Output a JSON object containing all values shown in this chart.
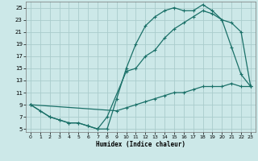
{
  "xlabel": "Humidex (Indice chaleur)",
  "bg_color": "#cce8e8",
  "grid_color": "#aacccc",
  "line_color": "#1a7068",
  "xlim": [
    -0.5,
    23.5
  ],
  "ylim": [
    4.5,
    26
  ],
  "xticks": [
    0,
    1,
    2,
    3,
    4,
    5,
    6,
    7,
    8,
    9,
    10,
    11,
    12,
    13,
    14,
    15,
    16,
    17,
    18,
    19,
    20,
    21,
    22,
    23
  ],
  "yticks": [
    5,
    7,
    9,
    11,
    13,
    15,
    17,
    19,
    21,
    23,
    25
  ],
  "curve1_x": [
    0,
    1,
    2,
    3,
    4,
    5,
    6,
    7,
    8,
    9,
    10,
    11,
    12,
    13,
    14,
    15,
    16,
    17,
    18,
    19,
    20,
    21,
    22,
    23
  ],
  "curve1_y": [
    9,
    8,
    7,
    6.5,
    6,
    6,
    5.5,
    5,
    5,
    10,
    15,
    19,
    22,
    23.5,
    24.5,
    25,
    24.5,
    24.5,
    25.5,
    24.5,
    23,
    18.5,
    14,
    12
  ],
  "curve2_x": [
    0,
    2,
    3,
    4,
    5,
    6,
    7,
    8,
    10,
    11,
    12,
    13,
    14,
    15,
    16,
    17,
    18,
    19,
    20,
    21,
    22,
    23
  ],
  "curve2_y": [
    9,
    7,
    6.5,
    6,
    6,
    5.5,
    5,
    7,
    14.5,
    15,
    17,
    18,
    20,
    21.5,
    22.5,
    23.5,
    24.5,
    24,
    23,
    22.5,
    21,
    12
  ],
  "curve3_x": [
    0,
    9,
    10,
    11,
    12,
    13,
    14,
    15,
    16,
    17,
    18,
    19,
    20,
    21,
    22,
    23
  ],
  "curve3_y": [
    9,
    8,
    8.5,
    9,
    9.5,
    10,
    10.5,
    11,
    11,
    11.5,
    12,
    12,
    12,
    12.5,
    12,
    12
  ]
}
